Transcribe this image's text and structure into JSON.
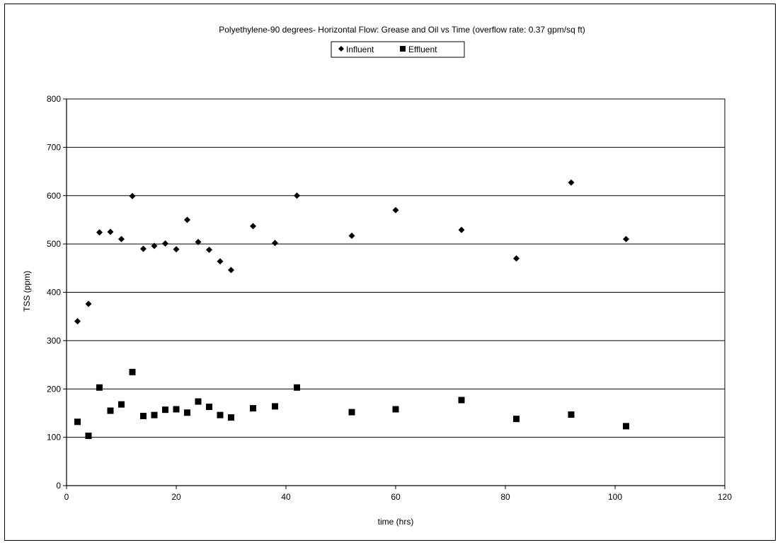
{
  "chart_data": {
    "type": "scatter",
    "title": "Polyethylene-90 degrees- Horizontal Flow: Grease and Oil vs Time (overflow rate: 0.37 gpm/sq ft)",
    "xlabel": "time (hrs)",
    "ylabel": "TSS (ppm)",
    "xlim": [
      0,
      120
    ],
    "ylim": [
      0,
      800
    ],
    "xticks": [
      0,
      20,
      40,
      60,
      80,
      100,
      120
    ],
    "yticks": [
      0,
      100,
      200,
      300,
      400,
      500,
      600,
      700,
      800
    ],
    "grid": "horizontal",
    "legend_position": "top-center",
    "series": [
      {
        "name": "Influent",
        "marker": "diamond",
        "color": "#000000",
        "x": [
          2,
          4,
          6,
          8,
          10,
          12,
          14,
          16,
          18,
          20,
          22,
          24,
          26,
          28,
          30,
          34,
          38,
          42,
          52,
          60,
          72,
          82,
          92,
          102
        ],
        "y": [
          340,
          376,
          524,
          525,
          510,
          599,
          490,
          496,
          501,
          489,
          550,
          504,
          488,
          464,
          446,
          537,
          502,
          600,
          517,
          570,
          529,
          470,
          627,
          510
        ]
      },
      {
        "name": "Effluent",
        "marker": "square",
        "color": "#000000",
        "x": [
          2,
          4,
          6,
          8,
          10,
          12,
          14,
          16,
          18,
          20,
          22,
          24,
          26,
          28,
          30,
          34,
          38,
          42,
          52,
          60,
          72,
          82,
          92,
          102
        ],
        "y": [
          132,
          103,
          203,
          155,
          168,
          235,
          144,
          146,
          157,
          158,
          151,
          174,
          163,
          146,
          141,
          160,
          164,
          203,
          152,
          158,
          177,
          138,
          147,
          123
        ]
      }
    ]
  }
}
